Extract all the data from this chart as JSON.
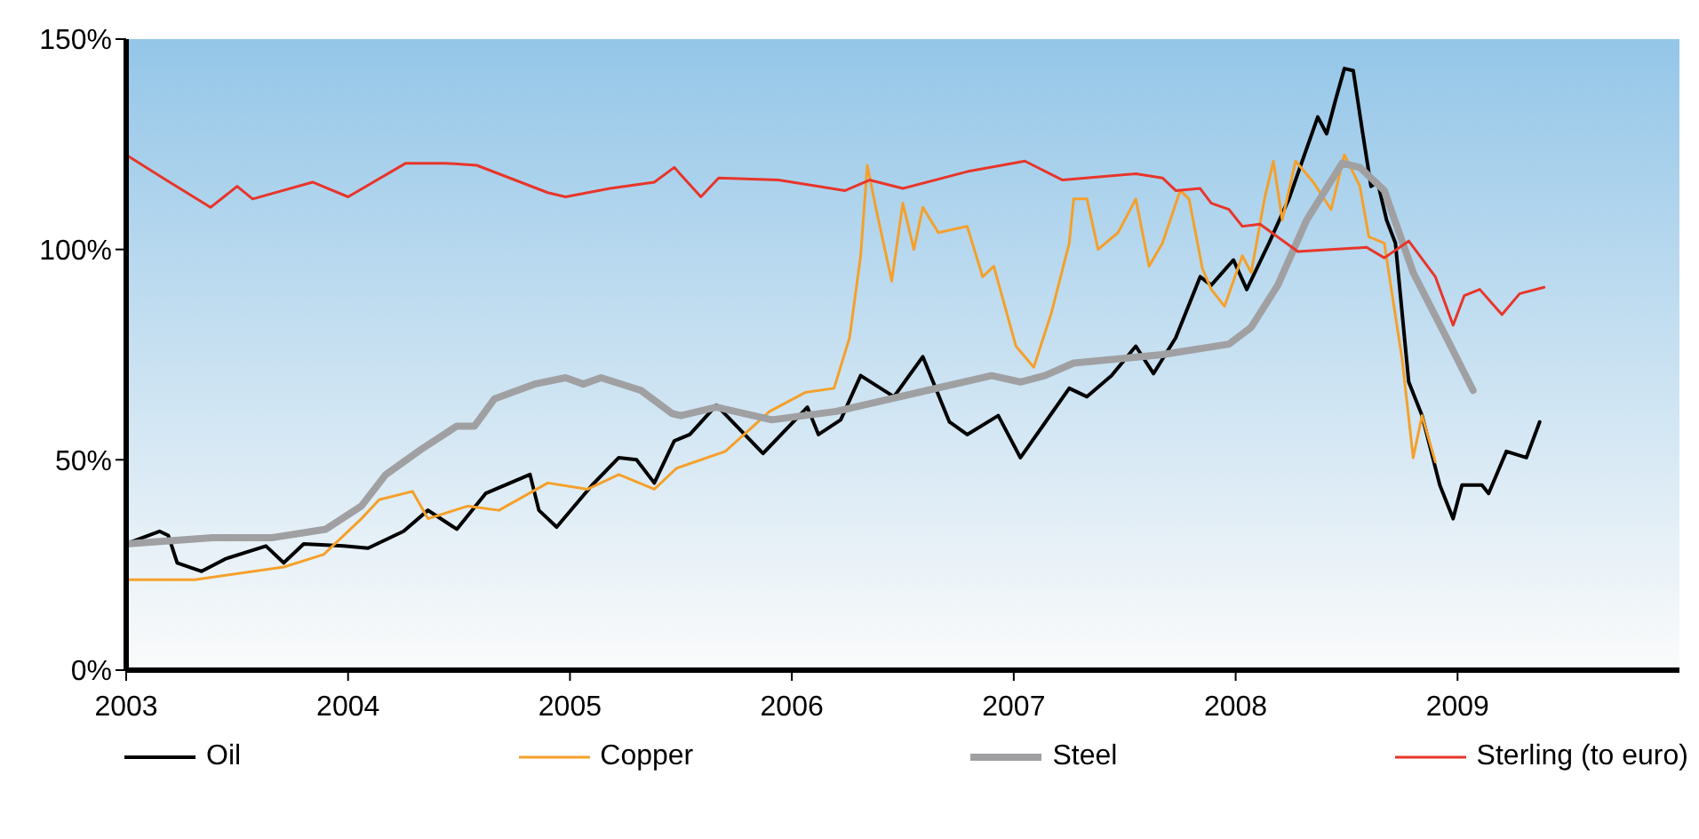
{
  "chart_data": {
    "type": "line",
    "xlim": [
      2003,
      2010
    ],
    "xticks": [
      2003,
      2004,
      2005,
      2006,
      2007,
      2008,
      2009
    ],
    "ylim": [
      0,
      150
    ],
    "yticks": [
      {
        "value": 0,
        "label": "0%"
      },
      {
        "value": 50,
        "label": "50%"
      },
      {
        "value": 100,
        "label": "100%"
      },
      {
        "value": 150,
        "label": "150%"
      }
    ],
    "grid": false,
    "legend": "bottom",
    "marker": "none",
    "series": [
      {
        "name": "Oil",
        "color": "#000000",
        "x": [
          2003.0,
          2003.15,
          2003.19,
          2003.23,
          2003.34,
          2003.45,
          2003.63,
          2003.71,
          2003.8,
          2003.98,
          2004.09,
          2004.25,
          2004.36,
          2004.49,
          2004.62,
          2004.82,
          2004.86,
          2004.94,
          2005.1,
          2005.22,
          2005.3,
          2005.38,
          2005.47,
          2005.54,
          2005.66,
          2005.87,
          2006.07,
          2006.12,
          2006.22,
          2006.31,
          2006.46,
          2006.59,
          2006.71,
          2006.79,
          2006.93,
          2007.03,
          2007.17,
          2007.25,
          2007.33,
          2007.44,
          2007.55,
          2007.63,
          2007.73,
          2007.84,
          2007.89,
          2007.99,
          2008.05,
          2008.15,
          2008.24,
          2008.37,
          2008.41,
          2008.45,
          2008.49,
          2008.53,
          2008.57,
          2008.61,
          2008.64,
          2008.68,
          2008.72,
          2008.78,
          2008.84,
          2008.92,
          2008.98,
          2009.02,
          2009.11,
          2009.14,
          2009.22,
          2009.31,
          2009.37
        ],
        "values": [
          30,
          33,
          32,
          25.5,
          23.5,
          26.5,
          29.5,
          25.5,
          30,
          29.5,
          29,
          33,
          38,
          33.5,
          42,
          46.5,
          38,
          34,
          44,
          50.5,
          50,
          44.5,
          54.5,
          56,
          63,
          51.5,
          62.5,
          56,
          59.5,
          70,
          65,
          74.5,
          59,
          56,
          60.5,
          50.5,
          61,
          67,
          65,
          70,
          77,
          70.5,
          79,
          93.5,
          91.5,
          97.5,
          90.5,
          101.5,
          112,
          131.5,
          127.5,
          135.5,
          143,
          142.5,
          128.5,
          115,
          116,
          107,
          101.5,
          68.5,
          60.5,
          44,
          36,
          44,
          44,
          42,
          52,
          50.5,
          59
        ]
      },
      {
        "name": "Copper",
        "color": "#f5a02a",
        "x": [
          2003.0,
          2003.31,
          2003.71,
          2003.89,
          2004.06,
          2004.14,
          2004.29,
          2004.36,
          2004.54,
          2004.68,
          2004.9,
          2005.08,
          2005.22,
          2005.38,
          2005.48,
          2005.7,
          2005.9,
          2006.06,
          2006.19,
          2006.26,
          2006.31,
          2006.34,
          2006.38,
          2006.45,
          2006.5,
          2006.55,
          2006.59,
          2006.66,
          2006.79,
          2006.86,
          2006.91,
          2007.01,
          2007.09,
          2007.17,
          2007.25,
          2007.27,
          2007.33,
          2007.38,
          2007.47,
          2007.55,
          2007.61,
          2007.67,
          2007.75,
          2007.79,
          2007.85,
          2007.89,
          2007.95,
          2008.03,
          2008.07,
          2008.13,
          2008.17,
          2008.21,
          2008.27,
          2008.35,
          2008.43,
          2008.49,
          2008.56,
          2008.6,
          2008.67,
          2008.69,
          2008.75,
          2008.8,
          2008.84,
          2008.9
        ],
        "values": [
          21.5,
          21.5,
          24.5,
          27.5,
          36,
          40.5,
          42.5,
          36,
          39,
          38,
          44.5,
          43,
          46.5,
          43,
          48,
          52,
          61.5,
          66,
          67,
          79,
          98.5,
          120,
          109.5,
          92.5,
          111,
          100,
          110,
          104,
          105.5,
          93.5,
          96,
          77,
          72,
          85,
          101.5,
          112,
          112,
          100,
          104,
          112,
          96,
          101.5,
          114,
          112,
          95.5,
          90.5,
          86.5,
          98.5,
          94.5,
          112,
          121,
          107,
          121,
          116,
          109.5,
          122.5,
          115,
          103,
          101.5,
          94.5,
          74,
          50.5,
          60.5,
          49.5
        ]
      },
      {
        "name": "Steel",
        "color": "#a0a0a2",
        "x": [
          2003.0,
          2003.39,
          2003.66,
          2003.9,
          2004.06,
          2004.17,
          2004.33,
          2004.49,
          2004.57,
          2004.66,
          2004.84,
          2004.98,
          2005.06,
          2005.14,
          2005.32,
          2005.46,
          2005.5,
          2005.66,
          2005.91,
          2006.2,
          2006.61,
          2006.9,
          2007.03,
          2007.14,
          2007.27,
          2007.67,
          2007.97,
          2008.07,
          2008.19,
          2008.32,
          2008.48,
          2008.56,
          2008.67,
          2008.8,
          2008.96,
          2009.07
        ],
        "values": [
          30,
          31.5,
          31.5,
          33.5,
          39,
          46.5,
          52.5,
          58,
          58,
          64.5,
          68,
          69.5,
          68,
          69.5,
          66.5,
          61,
          60.5,
          62.5,
          59.5,
          61.5,
          66.5,
          70,
          68.5,
          70,
          73,
          75,
          77.5,
          81.5,
          91.5,
          107,
          120.5,
          119.5,
          114,
          94.5,
          78,
          66.5
        ]
      },
      {
        "name": "Sterling (to euro)",
        "color": "#e8352a",
        "x": [
          2003.0,
          2003.18,
          2003.38,
          2003.5,
          2003.57,
          2003.84,
          2004.0,
          2004.26,
          2004.44,
          2004.58,
          2004.9,
          2004.98,
          2005.18,
          2005.38,
          2005.47,
          2005.59,
          2005.67,
          2005.94,
          2006.24,
          2006.35,
          2006.5,
          2006.79,
          2007.05,
          2007.22,
          2007.55,
          2007.67,
          2007.73,
          2007.84,
          2007.89,
          2007.97,
          2008.03,
          2008.11,
          2008.28,
          2008.59,
          2008.67,
          2008.78,
          2008.9,
          2008.98,
          2009.03,
          2009.1,
          2009.2,
          2009.28,
          2009.39
        ],
        "values": [
          122.5,
          116.5,
          110,
          115,
          112,
          116,
          112.5,
          120.5,
          120.5,
          120,
          113.5,
          112.5,
          114.5,
          116,
          119.5,
          112.5,
          117,
          116.5,
          114,
          116.5,
          114.5,
          118.5,
          121,
          116.5,
          118,
          117,
          114,
          114.5,
          111,
          109.5,
          105.5,
          106,
          99.5,
          100.5,
          98,
          102,
          93.5,
          82,
          89,
          90.5,
          84.5,
          89.5,
          91
        ]
      }
    ]
  }
}
